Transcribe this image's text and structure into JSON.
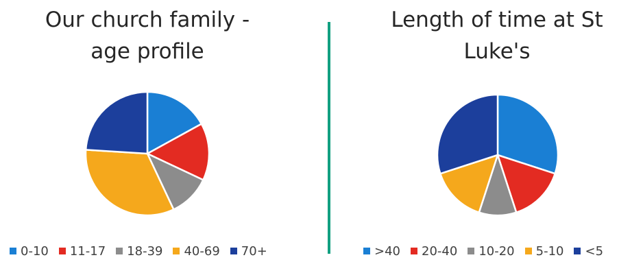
{
  "chart_data": [
    {
      "type": "pie",
      "title_lines": [
        "Our church family -",
        "age profile"
      ],
      "legend_position": "bottom",
      "slices": [
        {
          "label": "0-10",
          "value": 17,
          "color": "#1a7fd4"
        },
        {
          "label": "11-17",
          "value": 15,
          "color": "#e32b22"
        },
        {
          "label": "18-39",
          "value": 11,
          "color": "#8c8c8c"
        },
        {
          "label": "40-69",
          "value": 33,
          "color": "#f5a81c"
        },
        {
          "label": "70+",
          "value": 24,
          "color": "#1c3f9c"
        }
      ]
    },
    {
      "type": "pie",
      "title_lines": [
        "Length of time at St",
        "Luke's"
      ],
      "legend_position": "bottom",
      "slices": [
        {
          "label": ">40",
          "value": 30,
          "color": "#1a7fd4"
        },
        {
          "label": "20-40",
          "value": 15,
          "color": "#e32b22"
        },
        {
          "label": "10-20",
          "value": 10,
          "color": "#8c8c8c"
        },
        {
          "label": "5-10",
          "value": 15,
          "color": "#f5a81c"
        },
        {
          "label": "<5",
          "value": 30,
          "color": "#1c3f9c"
        }
      ]
    }
  ],
  "colors": {
    "divider": "#12a081"
  }
}
